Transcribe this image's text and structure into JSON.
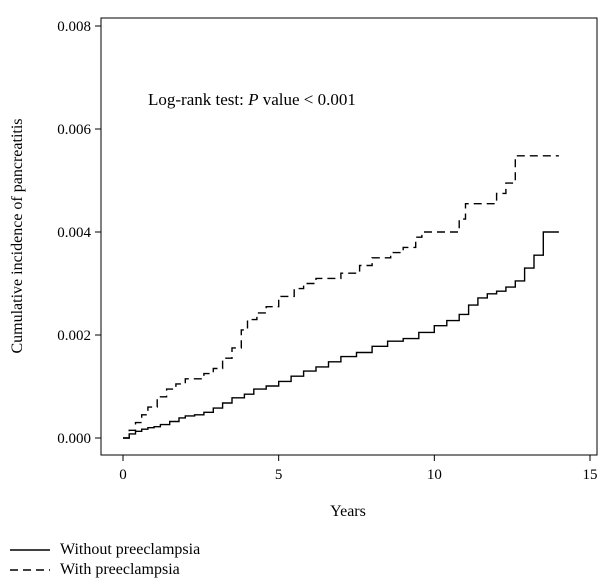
{
  "chart_data": {
    "type": "line",
    "annotation": {
      "prefix": "Log-rank test: ",
      "italic": "P",
      "suffix": " value < 0.001"
    },
    "xlabel": "Years",
    "ylabel": "Cumulative incidence of pancreatitis",
    "xlim": [
      0,
      15
    ],
    "ylim": [
      0,
      0.008
    ],
    "x_ticks": [
      0,
      5,
      10,
      15
    ],
    "y_ticks": [
      0.0,
      0.002,
      0.004,
      0.006,
      0.008
    ],
    "y_tick_labels": [
      "0.000",
      "0.002",
      "0.004",
      "0.006",
      "0.008"
    ],
    "grid": false,
    "legend_position": "bottom-left",
    "series": [
      {
        "name": "Without preeclampsia",
        "line_style": "solid",
        "x": [
          0,
          0.2,
          0.4,
          0.6,
          0.8,
          1.0,
          1.2,
          1.5,
          1.8,
          2.0,
          2.3,
          2.6,
          2.9,
          3.2,
          3.5,
          3.9,
          4.2,
          4.6,
          5.0,
          5.4,
          5.8,
          6.2,
          6.6,
          7.0,
          7.5,
          8.0,
          8.5,
          9.0,
          9.5,
          10.0,
          10.4,
          10.8,
          11.1,
          11.4,
          11.7,
          12.0,
          12.3,
          12.6,
          12.9,
          13.2,
          13.5,
          14.0
        ],
        "y": [
          0,
          8e-05,
          0.00013,
          0.00017,
          0.0002,
          0.00022,
          0.00026,
          0.00032,
          0.00039,
          0.00043,
          0.00045,
          0.0005,
          0.00058,
          0.00068,
          0.00078,
          0.00085,
          0.00095,
          0.00101,
          0.0011,
          0.0012,
          0.0013,
          0.00138,
          0.00148,
          0.00158,
          0.00166,
          0.00178,
          0.00188,
          0.00193,
          0.00205,
          0.00218,
          0.00228,
          0.0024,
          0.00258,
          0.00272,
          0.0028,
          0.00285,
          0.00293,
          0.00305,
          0.0033,
          0.00355,
          0.004,
          0.004
        ]
      },
      {
        "name": "With preeclampsia",
        "line_style": "dashed",
        "x": [
          0,
          0.2,
          0.4,
          0.6,
          0.8,
          1.1,
          1.4,
          1.7,
          2.0,
          2.6,
          2.9,
          3.2,
          3.5,
          3.8,
          4.0,
          4.3,
          4.6,
          5.0,
          5.5,
          5.8,
          6.2,
          7.0,
          7.6,
          8.0,
          8.6,
          9.0,
          9.4,
          9.6,
          10.2,
          10.8,
          11.0,
          11.5,
          12.0,
          12.3,
          12.6,
          13.2,
          14.0
        ],
        "y": [
          0,
          0.00015,
          0.0003,
          0.00045,
          0.0006,
          0.0008,
          0.00095,
          0.00105,
          0.00115,
          0.00125,
          0.00135,
          0.00155,
          0.00175,
          0.0021,
          0.0023,
          0.00243,
          0.00255,
          0.00275,
          0.0029,
          0.003,
          0.0031,
          0.0032,
          0.00335,
          0.0035,
          0.0036,
          0.0037,
          0.0039,
          0.004,
          0.004,
          0.00425,
          0.00455,
          0.00455,
          0.00475,
          0.00495,
          0.00548,
          0.00548,
          0.00548
        ]
      }
    ]
  }
}
